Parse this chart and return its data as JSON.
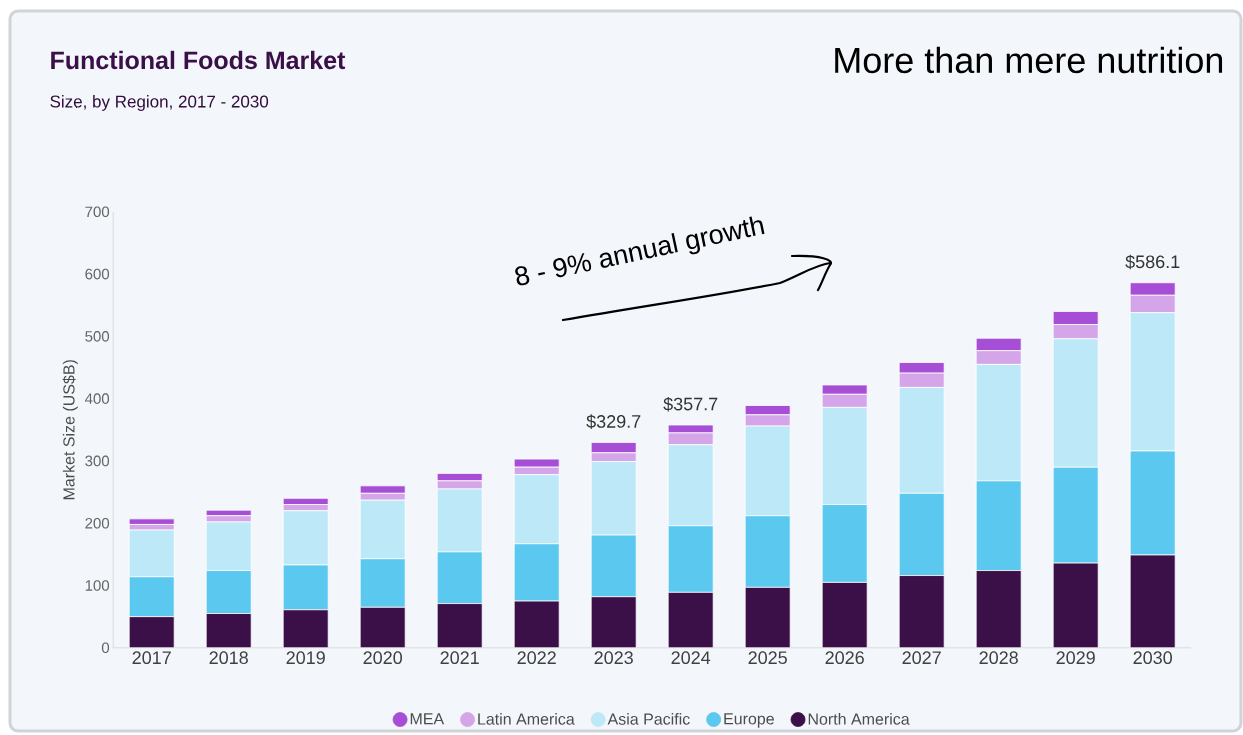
{
  "chart_data": {
    "type": "bar",
    "title": "Functional Foods Market",
    "subtitle": "Size, by Region, 2017 - 2030",
    "ylabel": "Market Size (US$B)",
    "categories": [
      "2017",
      "2018",
      "2019",
      "2020",
      "2021",
      "2022",
      "2023",
      "2024",
      "2025",
      "2026",
      "2027",
      "2028",
      "2029",
      "2030"
    ],
    "stacked": true,
    "series": [
      {
        "name": "North America",
        "color": "#3b1048",
        "values": [
          50,
          55,
          61,
          65,
          71,
          75,
          82,
          89,
          97,
          105,
          116,
          124,
          136,
          149
        ]
      },
      {
        "name": "Europe",
        "color": "#5bc8f0",
        "values": [
          64,
          69,
          72,
          78,
          83,
          92,
          99,
          107,
          115,
          125,
          132,
          144,
          154,
          167
        ]
      },
      {
        "name": "Asia Pacific",
        "color": "#bde8f7",
        "values": [
          75,
          78,
          87,
          94,
          101,
          111,
          118,
          130,
          144,
          156,
          170,
          187,
          206,
          222
        ]
      },
      {
        "name": "Latin America",
        "color": "#d4a5e8",
        "values": [
          9,
          10,
          10,
          11,
          13,
          12,
          14,
          19,
          18,
          21,
          23,
          22,
          23,
          28
        ]
      },
      {
        "name": "MEA",
        "color": "#a64fd6",
        "values": [
          9,
          9,
          10,
          12,
          12,
          13,
          16.7,
          12.7,
          15,
          15,
          17,
          20,
          21,
          20.1
        ]
      }
    ],
    "totals": [
      null,
      null,
      null,
      null,
      null,
      null,
      "$329.7",
      "$357.7",
      null,
      null,
      null,
      null,
      null,
      "$586.1"
    ],
    "ylim": [
      0,
      700
    ],
    "yticks": [
      0,
      100,
      200,
      300,
      400,
      500,
      600,
      700
    ],
    "legend": "bottom",
    "annotations": [
      "More than mere nutrition",
      "8 - 9% annual growth"
    ]
  }
}
